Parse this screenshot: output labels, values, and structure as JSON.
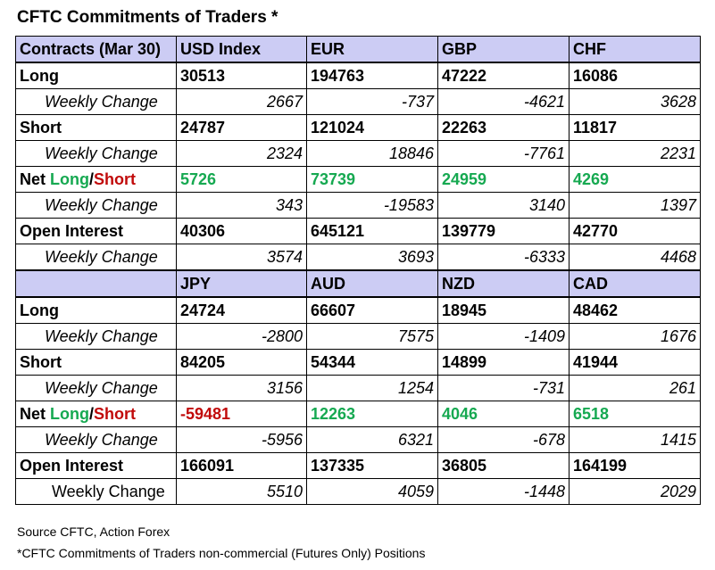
{
  "title": "CFTC Commitments of Traders *",
  "colors": {
    "header_bg": "#ccccf4",
    "positive": "#16a951",
    "negative": "#c10a0a"
  },
  "tables": [
    {
      "header": [
        "Contracts (Mar 30)",
        "USD Index",
        "EUR",
        "GBP",
        "CHF"
      ],
      "long": {
        "label": "Long",
        "values": [
          "30513",
          "194763",
          "47222",
          "16086"
        ],
        "weekly_label": "Weekly Change",
        "weekly": [
          "2667",
          "-737",
          "-4621",
          "3628"
        ]
      },
      "short": {
        "label": "Short",
        "values": [
          "24787",
          "121024",
          "22263",
          "11817"
        ],
        "weekly_label": "Weekly Change",
        "weekly": [
          "2324",
          "18846",
          "-7761",
          "2231"
        ]
      },
      "net": {
        "label_prefix": "Net ",
        "label_long": "Long",
        "label_slash": "/",
        "label_short": "Short",
        "values": [
          "5726",
          "73739",
          "24959",
          "4269"
        ],
        "weekly_label": "Weekly Change",
        "weekly": [
          "343",
          "-19583",
          "3140",
          "1397"
        ]
      },
      "open_interest": {
        "label": "Open Interest",
        "values": [
          "40306",
          "645121",
          "139779",
          "42770"
        ],
        "weekly_label": "Weekly Change",
        "weekly": [
          "3574",
          "3693",
          "-6333",
          "4468"
        ]
      }
    },
    {
      "header": [
        "",
        "JPY",
        "AUD",
        "NZD",
        "CAD"
      ],
      "long": {
        "label": "Long",
        "values": [
          "24724",
          "66607",
          "18945",
          "48462"
        ],
        "weekly_label": "Weekly Change",
        "weekly": [
          "-2800",
          "7575",
          "-1409",
          "1676"
        ]
      },
      "short": {
        "label": "Short",
        "values": [
          "84205",
          "54344",
          "14899",
          "41944"
        ],
        "weekly_label": "Weekly Change",
        "weekly": [
          "3156",
          "1254",
          "-731",
          "261"
        ]
      },
      "net": {
        "label_prefix": "Net ",
        "label_long": "Long",
        "label_slash": "/",
        "label_short": "Short",
        "values": [
          "-59481",
          "12263",
          "4046",
          "6518"
        ],
        "weekly_label": "Weekly Change",
        "weekly": [
          "-5956",
          "6321",
          "-678",
          "1415"
        ]
      },
      "open_interest": {
        "label": "Open Interest",
        "values": [
          "166091",
          "137335",
          "36805",
          "164199"
        ],
        "weekly_label": "Weekly Change",
        "weekly": [
          "5510",
          "4059",
          "-1448",
          "2029"
        ]
      }
    }
  ],
  "footer": {
    "source": "Source CFTC, Action Forex",
    "note": "*CFTC Commitments of Traders non-commercial (Futures Only) Positions"
  }
}
